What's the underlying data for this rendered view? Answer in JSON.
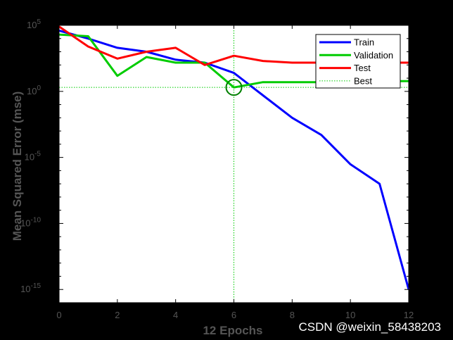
{
  "chart_data": {
    "type": "line",
    "xlabel": "12 Epochs",
    "ylabel": "Mean Squared Error  (mse)",
    "y_scale": "log",
    "xlim": [
      0,
      12
    ],
    "ylim": [
      1e-16,
      100000.0
    ],
    "x_ticks": [
      "0",
      "2",
      "4",
      "6",
      "8",
      "10",
      "12"
    ],
    "y_ticks": [
      {
        "base": "10",
        "exp": "5",
        "value": 100000.0
      },
      {
        "base": "10",
        "exp": "0",
        "value": 1
      },
      {
        "base": "10",
        "exp": "-5",
        "value": 1e-05
      },
      {
        "base": "10",
        "exp": "-10",
        "value": 1e-10
      },
      {
        "base": "10",
        "exp": "-15",
        "value": 1e-15
      }
    ],
    "series": [
      {
        "name": "Train",
        "color": "#0000ff",
        "style": "solid",
        "x": [
          0,
          1,
          2,
          3,
          4,
          5,
          6,
          7,
          8,
          9,
          10,
          11,
          12
        ],
        "y": [
          40000,
          10000,
          2000,
          1000,
          250,
          150,
          25,
          0.5,
          0.01,
          0.0005,
          3e-06,
          1e-07,
          1e-15
        ]
      },
      {
        "name": "Validation",
        "color": "#00cc00",
        "style": "solid",
        "x": [
          0,
          1,
          2,
          3,
          4,
          5,
          6,
          7,
          8,
          9,
          10,
          11,
          12
        ],
        "y": [
          20000,
          15000,
          15,
          400,
          150,
          150,
          2,
          5,
          5,
          5,
          5,
          6,
          6
        ]
      },
      {
        "name": "Test",
        "color": "#ff0000",
        "style": "solid",
        "x": [
          0,
          1,
          2,
          3,
          4,
          5,
          6,
          7,
          8,
          9,
          10,
          11,
          12
        ],
        "y": [
          80000,
          2500,
          300,
          1000,
          2000,
          100,
          500,
          200,
          150,
          150,
          150,
          150,
          150
        ]
      },
      {
        "name": "Best",
        "color": "#00cc00",
        "style": "dotted"
      }
    ],
    "best": {
      "epoch": 6,
      "value": 2
    },
    "legend_position": "top-right",
    "grid": false
  },
  "watermark": "CSDN @weixin_58438203",
  "colors": {
    "background": "#000000",
    "plot_area": "#ffffff",
    "text": "#555555"
  }
}
